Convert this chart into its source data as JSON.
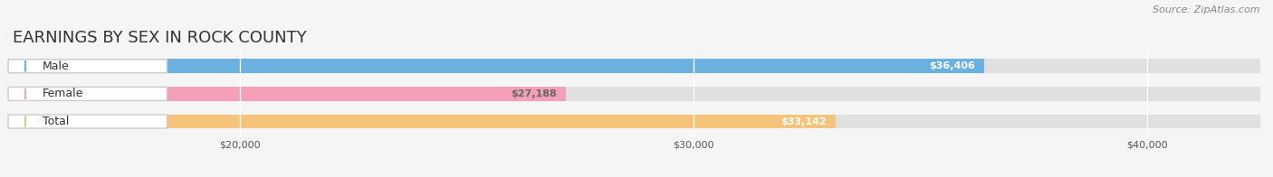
{
  "title": "EARNINGS BY SEX IN ROCK COUNTY",
  "source": "Source: ZipAtlas.com",
  "categories": [
    "Male",
    "Female",
    "Total"
  ],
  "values": [
    36406,
    27188,
    33142
  ],
  "bar_colors": [
    "#6ab0e0",
    "#f4a0b8",
    "#f5c47a"
  ],
  "label_colors": [
    "#ffffff",
    "#666666",
    "#ffffff"
  ],
  "x_ticks": [
    20000,
    30000,
    40000
  ],
  "x_tick_labels": [
    "$20,000",
    "$30,000",
    "$40,000"
  ],
  "xlim": [
    15000,
    42500
  ],
  "background_color": "#f5f5f5",
  "bar_background_color": "#e0e0e0",
  "title_fontsize": 13,
  "source_fontsize": 8,
  "label_fontsize": 8,
  "tick_fontsize": 8,
  "bar_height": 0.52
}
